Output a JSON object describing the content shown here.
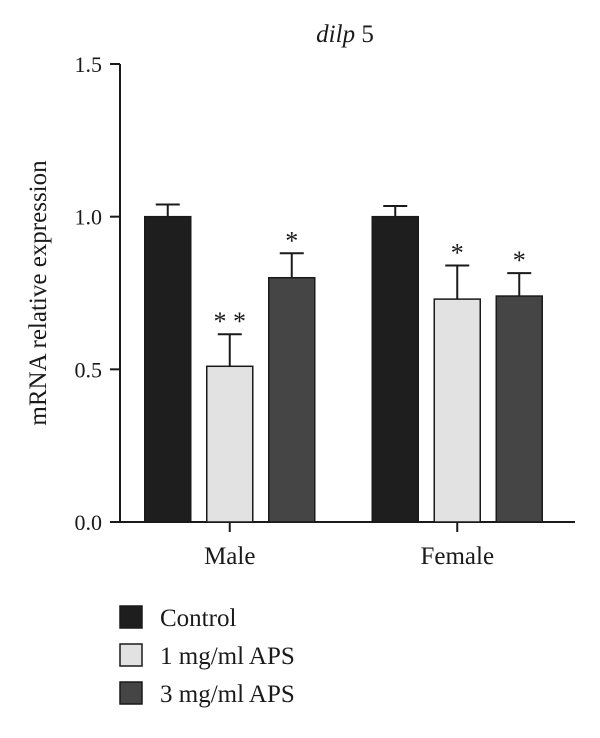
{
  "chart_data": {
    "type": "bar",
    "title_italic": "dilp",
    "title_rest": " 5",
    "ylabel": "mRNA relative expression",
    "xlabel": "",
    "ylim": [
      0,
      1.5
    ],
    "yticks": [
      "0.0",
      "0.5",
      "1.0",
      "1.5"
    ],
    "categories": [
      "Male",
      "Female"
    ],
    "series": [
      {
        "name": "Control",
        "color": "#1e1e1e",
        "values": [
          1.0,
          1.0
        ],
        "errors": [
          0.04,
          0.035
        ],
        "sig": [
          "",
          ""
        ]
      },
      {
        "name": "1 mg/ml APS",
        "color": "#e2e2e2",
        "values": [
          0.51,
          0.73
        ],
        "errors": [
          0.105,
          0.11
        ],
        "sig": [
          "**",
          "*"
        ]
      },
      {
        "name": "3 mg/ml APS",
        "color": "#454545",
        "values": [
          0.8,
          0.74
        ],
        "errors": [
          0.08,
          0.075
        ],
        "sig": [
          "*",
          "*"
        ]
      }
    ],
    "legend_position": "bottom-left",
    "grid": false
  }
}
